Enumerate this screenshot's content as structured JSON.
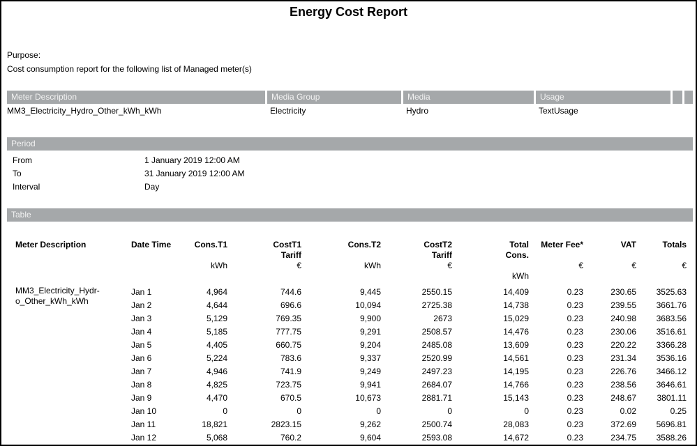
{
  "report": {
    "title": "Energy Cost Report",
    "purpose_label": "Purpose:",
    "purpose_text": "Cost consumption report for the following list of Managed meter(s)"
  },
  "meters": {
    "headers": [
      "Meter Description",
      "Media Group",
      "Media",
      "Usage"
    ],
    "rows": [
      [
        "MM3_Electricity_Hydro_Other_kWh_kWh",
        "Electricity",
        "Hydro",
        "TextUsage"
      ]
    ]
  },
  "period": {
    "section_title": "Period",
    "rows": [
      {
        "label": "From",
        "value": "1 January 2019 12:00 AM"
      },
      {
        "label": "To",
        "value": "31 January 2019 12:00 AM"
      },
      {
        "label": "Interval",
        "value": "Day"
      }
    ]
  },
  "table": {
    "section_title": "Table",
    "columns": [
      {
        "name": "Meter Description",
        "unit": ""
      },
      {
        "name": "Date Time",
        "unit": ""
      },
      {
        "name": "Cons.T1",
        "unit": "kWh"
      },
      {
        "name": "CostT1\nTariff",
        "unit": "€"
      },
      {
        "name": "Cons.T2",
        "unit": "kWh"
      },
      {
        "name": "CostT2\nTariff",
        "unit": "€"
      },
      {
        "name": "Total\nCons.",
        "unit": "\nkWh"
      },
      {
        "name": "Meter Fee*",
        "unit": "€"
      },
      {
        "name": "VAT",
        "unit": "€"
      },
      {
        "name": "Totals",
        "unit": "€"
      }
    ],
    "meter_name_wrapped": "MM3_Electricity_Hydr-\no_Other_kWh_kWh",
    "rows": [
      [
        "Jan 1",
        "4,964",
        "744.6",
        "9,445",
        "2550.15",
        "14,409",
        "0.23",
        "230.65",
        "3525.63"
      ],
      [
        "Jan 2",
        "4,644",
        "696.6",
        "10,094",
        "2725.38",
        "14,738",
        "0.23",
        "239.55",
        "3661.76"
      ],
      [
        "Jan 3",
        "5,129",
        "769.35",
        "9,900",
        "2673",
        "15,029",
        "0.23",
        "240.98",
        "3683.56"
      ],
      [
        "Jan 4",
        "5,185",
        "777.75",
        "9,291",
        "2508.57",
        "14,476",
        "0.23",
        "230.06",
        "3516.61"
      ],
      [
        "Jan 5",
        "4,405",
        "660.75",
        "9,204",
        "2485.08",
        "13,609",
        "0.23",
        "220.22",
        "3366.28"
      ],
      [
        "Jan 6",
        "5,224",
        "783.6",
        "9,337",
        "2520.99",
        "14,561",
        "0.23",
        "231.34",
        "3536.16"
      ],
      [
        "Jan 7",
        "4,946",
        "741.9",
        "9,249",
        "2497.23",
        "14,195",
        "0.23",
        "226.76",
        "3466.12"
      ],
      [
        "Jan 8",
        "4,825",
        "723.75",
        "9,941",
        "2684.07",
        "14,766",
        "0.23",
        "238.56",
        "3646.61"
      ],
      [
        "Jan 9",
        "4,470",
        "670.5",
        "10,673",
        "2881.71",
        "15,143",
        "0.23",
        "248.67",
        "3801.11"
      ],
      [
        "Jan 10",
        "0",
        "0",
        "0",
        "0",
        "0",
        "0.23",
        "0.02",
        "0.25"
      ],
      [
        "Jan 11",
        "18,821",
        "2823.15",
        "9,262",
        "2500.74",
        "28,083",
        "0.23",
        "372.69",
        "5696.81"
      ],
      [
        "Jan 12",
        "5,068",
        "760.2",
        "9,604",
        "2593.08",
        "14,672",
        "0.23",
        "234.75",
        "3588.26"
      ]
    ]
  },
  "colors": {
    "section_bar_bg": "#a5a8aa",
    "section_bar_text": "#f2f2f2"
  }
}
